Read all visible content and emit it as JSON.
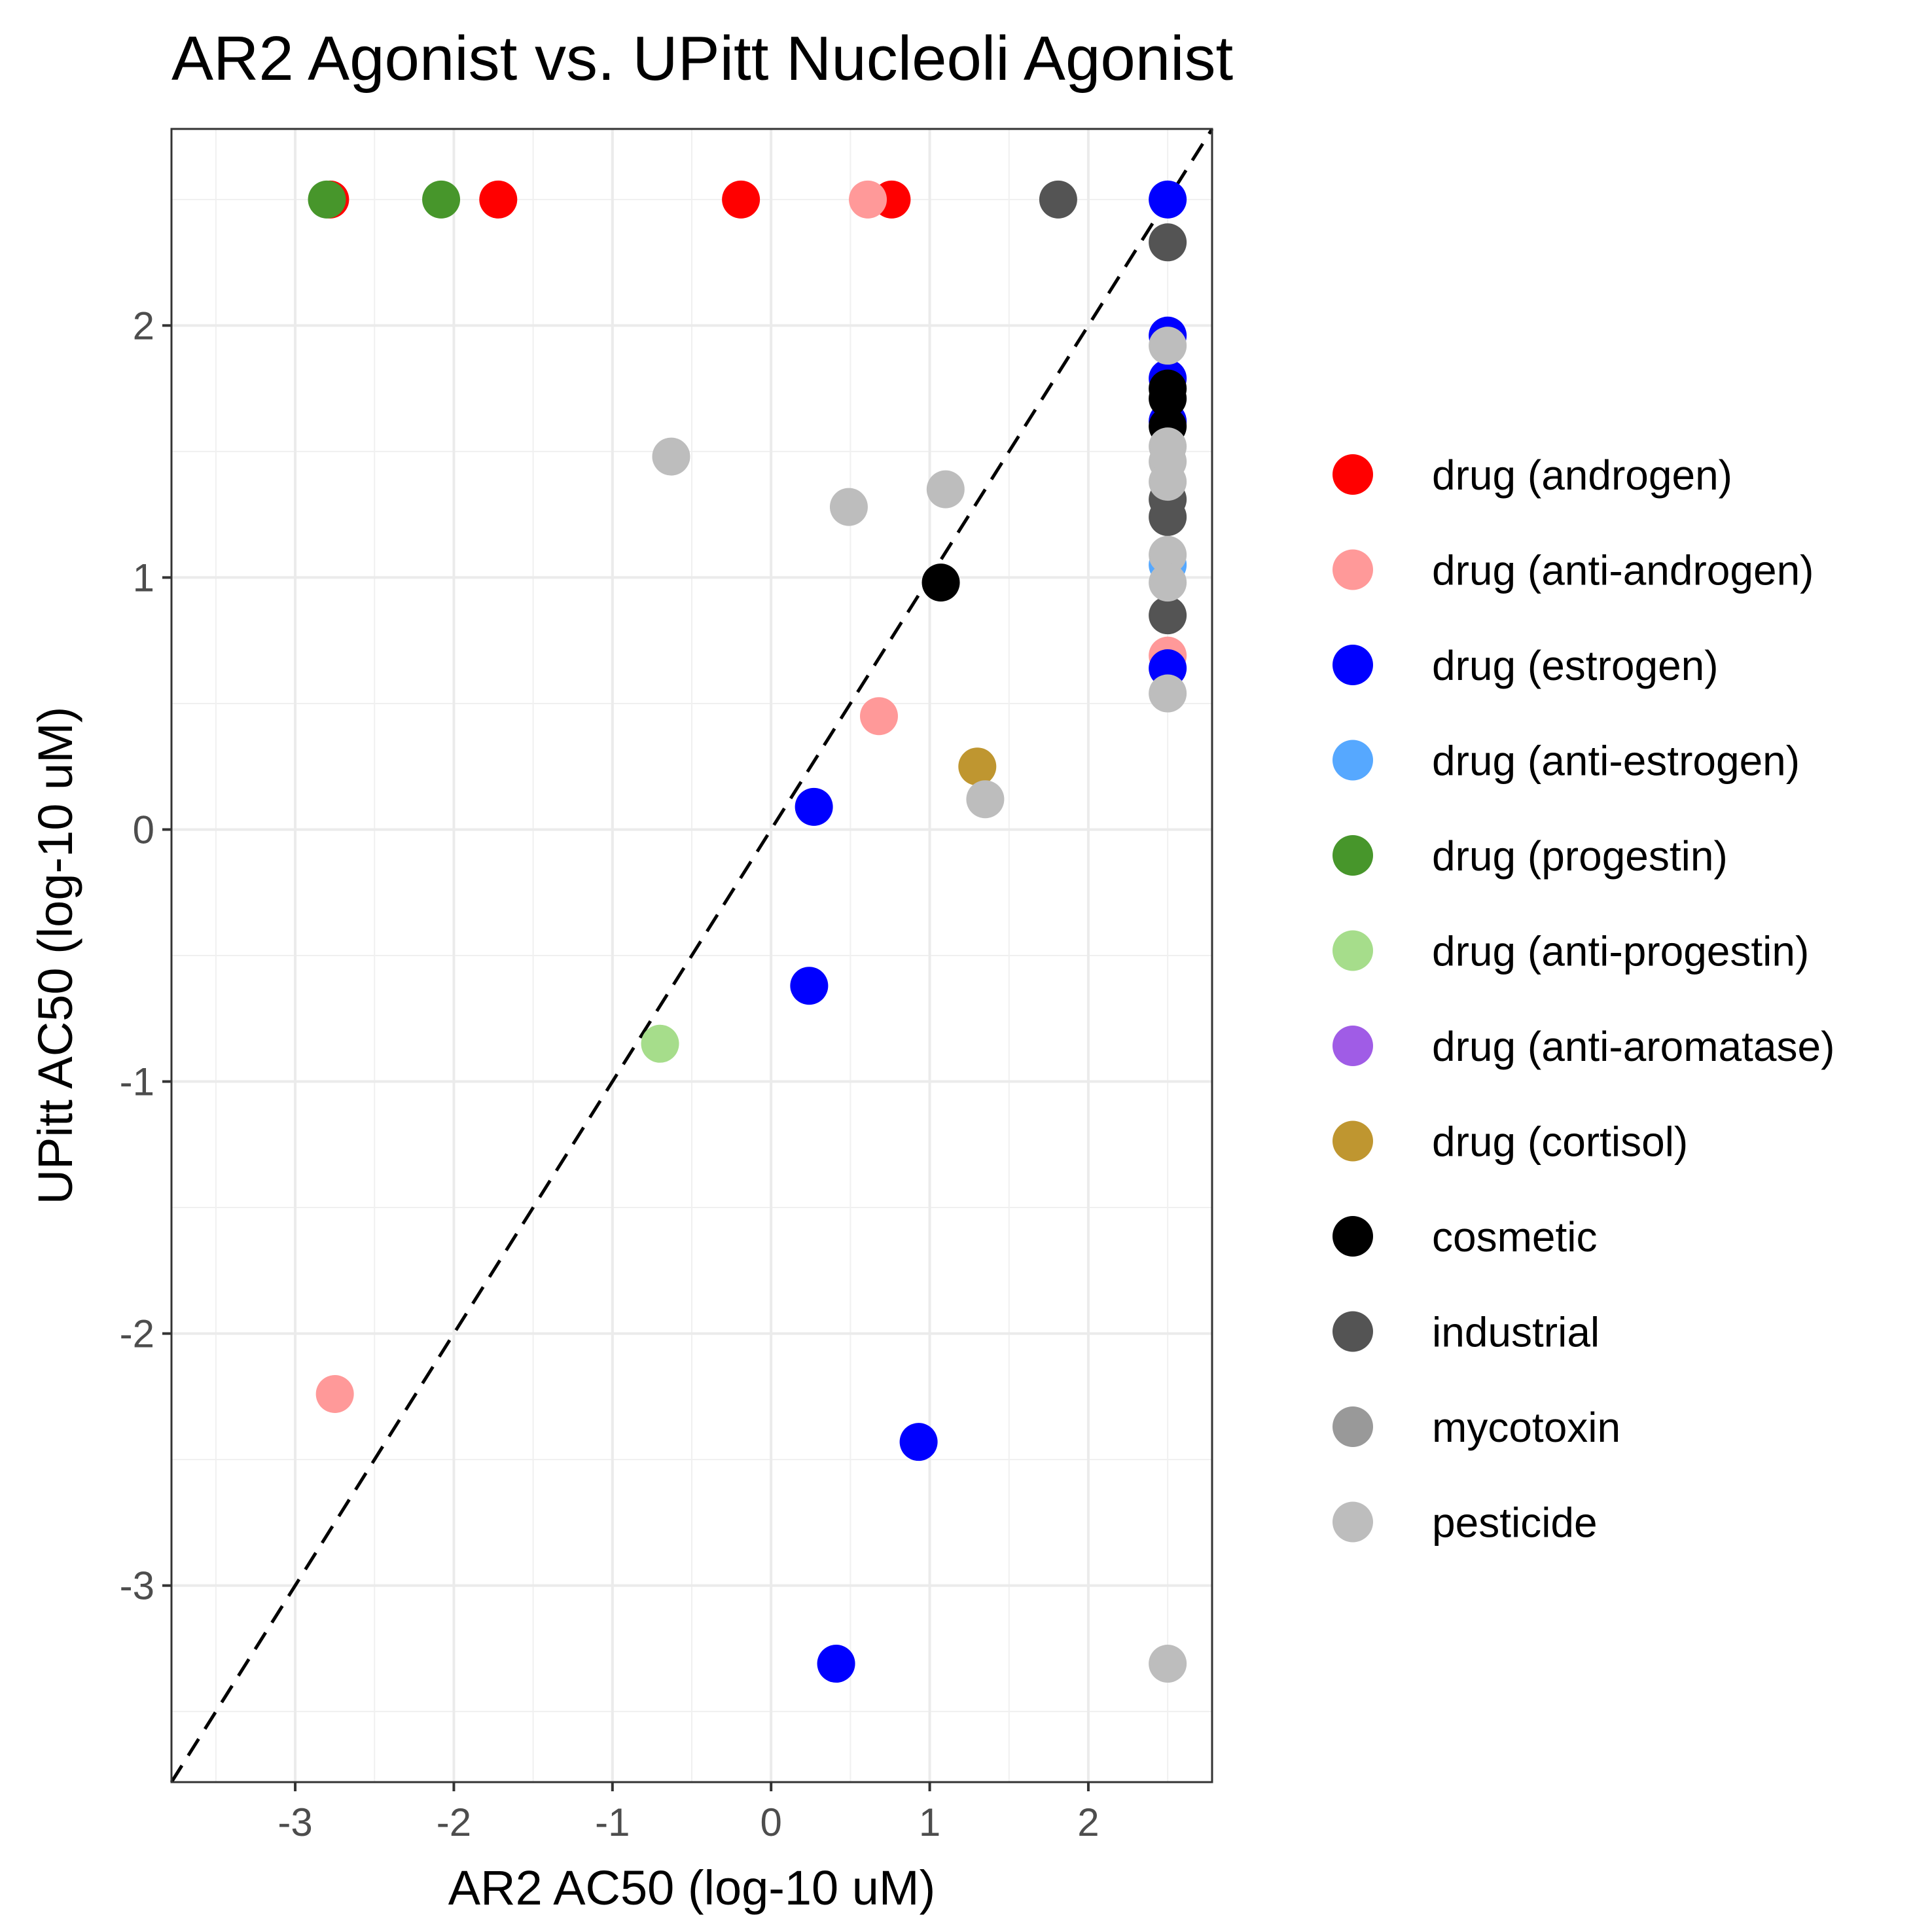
{
  "chart_data": {
    "type": "scatter",
    "title": "AR2 Agonist vs. UPitt Nucleoli Agonist",
    "xlabel": "AR2 AC50 (log-10 uM)",
    "ylabel": "UPitt AC50 (log-10 uM)",
    "xlim": [
      -3.78,
      2.78
    ],
    "ylim": [
      -3.78,
      2.78
    ],
    "x_ticks": [
      -3,
      -2,
      -1,
      0,
      1,
      2
    ],
    "y_ticks": [
      -3,
      -2,
      -1,
      0,
      1,
      2
    ],
    "x_tick_labels": [
      "-3",
      "-2",
      "-1",
      "0",
      "1",
      "2"
    ],
    "y_tick_labels": [
      "-3",
      "-2",
      "-1",
      "0",
      "1",
      "2"
    ],
    "grid": true,
    "reference_line": {
      "type": "identity",
      "style": "dashed",
      "color": "#000000"
    },
    "legend_position": "right",
    "series": [
      {
        "name": "drug (androgen)",
        "color": "#FF0000",
        "points": [
          [
            -2.78,
            2.5
          ],
          [
            -1.72,
            2.5
          ],
          [
            -0.19,
            2.5
          ],
          [
            0.76,
            2.5
          ]
        ]
      },
      {
        "name": "drug (anti-androgen)",
        "color": "#FF9999",
        "points": [
          [
            -2.75,
            -2.24
          ],
          [
            0.61,
            2.5
          ],
          [
            0.68,
            0.45
          ],
          [
            2.5,
            0.69
          ]
        ]
      },
      {
        "name": "drug (estrogen)",
        "color": "#0000FF",
        "points": [
          [
            0.27,
            0.09
          ],
          [
            0.24,
            -0.62
          ],
          [
            0.93,
            -2.43
          ],
          [
            0.41,
            -3.31
          ],
          [
            2.5,
            2.5
          ],
          [
            2.5,
            1.96
          ],
          [
            2.5,
            1.79
          ],
          [
            2.5,
            1.62
          ],
          [
            2.5,
            0.64
          ]
        ]
      },
      {
        "name": "drug (anti-estrogen)",
        "color": "#56A8FF",
        "points": [
          [
            2.5,
            1.05
          ]
        ]
      },
      {
        "name": "drug (progestin)",
        "color": "#47962B",
        "points": [
          [
            -2.8,
            2.5
          ],
          [
            -2.08,
            2.5
          ]
        ]
      },
      {
        "name": "drug (anti-progestin)",
        "color": "#A6DD8B",
        "points": [
          [
            -0.7,
            -0.85
          ]
        ]
      },
      {
        "name": "drug (anti-aromatase)",
        "color": "#A05CE6",
        "points": []
      },
      {
        "name": "drug (cortisol)",
        "color": "#BF9630",
        "points": [
          [
            1.3,
            0.25
          ]
        ]
      },
      {
        "name": "cosmetic",
        "color": "#000000",
        "points": [
          [
            1.07,
            0.98
          ],
          [
            2.5,
            1.75
          ],
          [
            2.5,
            1.71
          ],
          [
            2.5,
            1.6
          ]
        ]
      },
      {
        "name": "industrial",
        "color": "#545454",
        "points": [
          [
            1.81,
            2.5
          ],
          [
            2.5,
            2.33
          ],
          [
            2.5,
            1.31
          ],
          [
            2.5,
            1.24
          ],
          [
            2.5,
            0.85
          ]
        ]
      },
      {
        "name": "mycotoxin",
        "color": "#999999",
        "points": []
      },
      {
        "name": "pesticide",
        "color": "#BDBDBD",
        "points": [
          [
            -0.63,
            1.48
          ],
          [
            0.49,
            1.28
          ],
          [
            1.1,
            1.35
          ],
          [
            1.35,
            0.12
          ],
          [
            2.5,
            1.92
          ],
          [
            2.5,
            1.52
          ],
          [
            2.5,
            1.46
          ],
          [
            2.5,
            1.38
          ],
          [
            2.5,
            1.09
          ],
          [
            2.5,
            0.98
          ],
          [
            2.5,
            0.54
          ],
          [
            2.5,
            -3.31
          ]
        ]
      }
    ]
  }
}
